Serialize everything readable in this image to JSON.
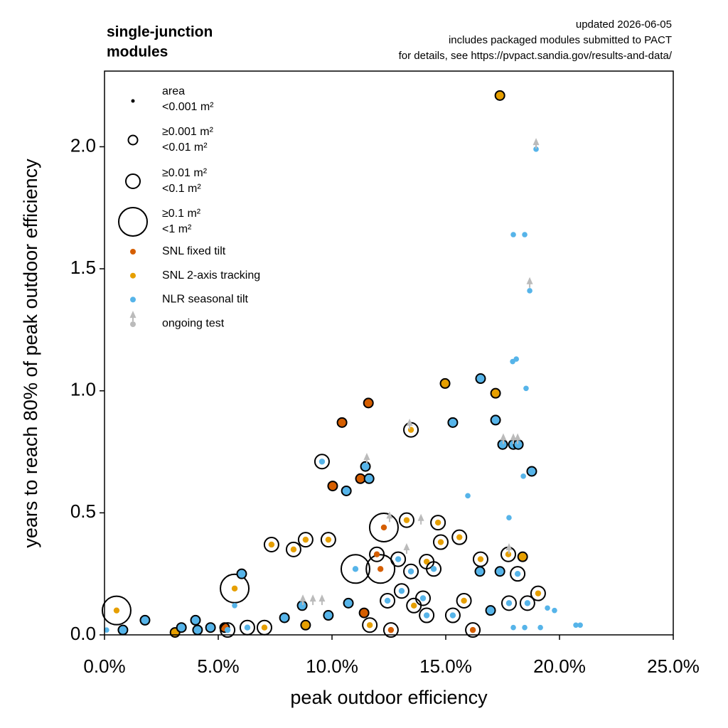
{
  "chart_data": {
    "type": "scatter",
    "title": [
      "single-junction",
      "modules"
    ],
    "notes": [
      "updated 2026-06-05",
      "includes packaged modules submitted to PACT",
      "for details, see https://pvpact.sandia.gov/results-and-data/"
    ],
    "xlabel": "peak outdoor efficiency",
    "ylabel": "years to reach 80% of peak outdoor efficiency",
    "xlim": [
      0,
      25
    ],
    "xticks": [
      {
        "value": 0,
        "label": "0.0%"
      },
      {
        "value": 5,
        "label": "5.0%"
      },
      {
        "value": 10,
        "label": "10.0%"
      },
      {
        "value": 15,
        "label": "15.0%"
      },
      {
        "value": 20,
        "label": "20.0%"
      },
      {
        "value": 25,
        "label": "25.0%"
      }
    ],
    "ylim": [
      0,
      2.31
    ],
    "yticks": [
      {
        "value": 0,
        "label": "0.0"
      },
      0.5,
      {
        "value": 1,
        "label": "1.0"
      },
      1.5,
      {
        "value": 2,
        "label": "2.0"
      }
    ],
    "size_legend": {
      "title": "area",
      "entries": [
        [
          "<0.001 m²"
        ],
        [
          "≥0.001 m²",
          "<0.01 m²"
        ],
        [
          "≥0.01 m²",
          "<0.1 m²"
        ],
        [
          "≥0.1 m²",
          "<1 m²"
        ]
      ]
    },
    "series": [
      {
        "name": "SNL fixed tilt",
        "color": "#d55e00",
        "x": [
          11.6,
          10.44,
          10.03,
          11.25,
          12.28,
          12.13,
          5.28,
          11.97,
          16.19,
          11.41,
          12.59
        ],
        "values": [
          0.95,
          0.87,
          0.61,
          0.64,
          0.44,
          0.27,
          0.03,
          0.33,
          0.02,
          0.09,
          0.02
        ],
        "area_class": [
          1,
          1,
          1,
          1,
          3,
          3,
          1,
          2,
          2,
          1,
          2
        ]
      },
      {
        "name": "SNL 2-axis tracking",
        "color": "#e69f00",
        "x": [
          17.38,
          0.53,
          5.72,
          7.34,
          8.31,
          8.84,
          9.84,
          14.97,
          17.19,
          13.47,
          13.28,
          14.66,
          15.6,
          14.78,
          16.53,
          17.75,
          18.38,
          19.06,
          3.1,
          8.84,
          7.03,
          14.16,
          15.8,
          11.66,
          13.6
        ],
        "values": [
          2.21,
          0.1,
          0.19,
          0.37,
          0.35,
          0.39,
          0.39,
          1.03,
          0.99,
          0.84,
          0.47,
          0.46,
          0.4,
          0.38,
          0.31,
          0.33,
          0.32,
          0.17,
          0.01,
          0.04,
          0.03,
          0.3,
          0.14,
          0.04,
          0.12
        ],
        "area_class": [
          1,
          3,
          3,
          2,
          2,
          2,
          2,
          1,
          1,
          2,
          2,
          2,
          2,
          2,
          2,
          2,
          1,
          2,
          1,
          1,
          2,
          2,
          2,
          2,
          2
        ]
      },
      {
        "name": "NLR seasonal tilt",
        "color": "#56b4e9",
        "x": [
          18.97,
          17.97,
          18.47,
          18.69,
          18.1,
          17.94,
          18.53,
          16.53,
          17.19,
          15.31,
          17.5,
          17.97,
          18.19,
          18.78,
          18.41,
          9.56,
          10.63,
          11.47,
          11.63,
          15.97,
          17.78,
          6.03,
          5.72,
          0.81,
          1.78,
          3.38,
          4.0,
          4.09,
          4.66,
          0.09,
          5.41,
          6.28,
          7.91,
          8.69,
          9.84,
          11.03,
          12.91,
          13.47,
          14.47,
          16.5,
          17.38,
          18.16,
          17.78,
          18.59,
          19.47,
          19.78,
          20.72,
          20.91,
          16.97,
          15.31,
          14.16,
          10.72,
          17.97,
          18.47,
          19.16,
          12.44,
          13.06,
          14.0
        ],
        "values": [
          1.99,
          1.64,
          1.64,
          1.41,
          1.13,
          1.12,
          1.01,
          1.05,
          0.88,
          0.87,
          0.78,
          0.78,
          0.78,
          0.67,
          0.65,
          0.71,
          0.59,
          0.69,
          0.64,
          0.57,
          0.48,
          0.25,
          0.12,
          0.02,
          0.06,
          0.03,
          0.06,
          0.02,
          0.03,
          0.02,
          0.02,
          0.03,
          0.07,
          0.12,
          0.08,
          0.27,
          0.31,
          0.26,
          0.27,
          0.26,
          0.26,
          0.25,
          0.13,
          0.13,
          0.11,
          0.1,
          0.04,
          0.04,
          0.1,
          0.08,
          0.08,
          0.13,
          0.03,
          0.03,
          0.03,
          0.14,
          0.18,
          0.15
        ],
        "area_class": [
          0,
          0,
          0,
          0,
          0,
          0,
          0,
          1,
          1,
          1,
          1,
          1,
          1,
          1,
          0,
          2,
          1,
          1,
          1,
          0,
          0,
          1,
          0,
          1,
          1,
          1,
          1,
          1,
          1,
          0,
          2,
          2,
          1,
          1,
          1,
          3,
          2,
          2,
          2,
          1,
          1,
          2,
          2,
          2,
          0,
          0,
          0,
          0,
          1,
          2,
          2,
          1,
          0,
          0,
          0,
          2,
          2,
          2
        ]
      },
      {
        "name": "ongoing test",
        "color": "#bbbbbb",
        "marker": "arrow",
        "x": [
          13.41,
          11.53,
          18.97,
          18.69,
          17.53,
          17.97,
          18.16,
          8.72,
          9.16,
          9.56,
          12.53,
          13.91,
          13.28,
          17.78
        ],
        "values": [
          0.88,
          0.74,
          2.03,
          1.46,
          0.82,
          0.82,
          0.82,
          0.16,
          0.16,
          0.16,
          0.5,
          0.49,
          0.37,
          0.37
        ]
      }
    ]
  }
}
